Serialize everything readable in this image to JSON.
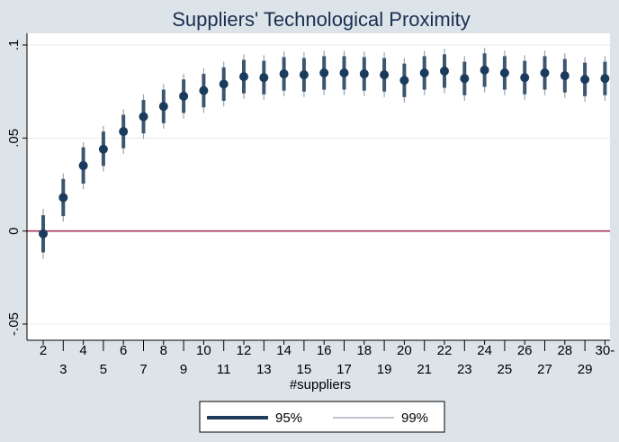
{
  "chart_data": {
    "type": "scatter",
    "title": "Suppliers' Technological Proximity",
    "xlabel": "#suppliers",
    "ylabel": "",
    "ylim": [
      -0.05,
      0.1
    ],
    "yticks": [
      {
        "value": -0.05,
        "label": "-.05"
      },
      {
        "value": 0,
        "label": "0"
      },
      {
        "value": 0.05,
        "label": ".05"
      },
      {
        "value": 0.1,
        "label": ".1"
      }
    ],
    "xticks": [
      "2",
      "3",
      "4",
      "5",
      "6",
      "7",
      "8",
      "9",
      "10",
      "11",
      "12",
      "13",
      "14",
      "15",
      "16",
      "17",
      "18",
      "19",
      "20",
      "21",
      "22",
      "23",
      "24",
      "25",
      "26",
      "27",
      "28",
      "29",
      "30-"
    ],
    "reference_line": {
      "y": 0,
      "color": "#a3234e"
    },
    "grid": true,
    "legend_position": "bottom",
    "legend": [
      {
        "label": "95%",
        "style": "thick",
        "color": "#1f3c5a"
      },
      {
        "label": "99%",
        "style": "thin",
        "color": "#9aa5ae"
      }
    ],
    "points": [
      {
        "x": "2",
        "est": -0.0015,
        "lo95": -0.0115,
        "hi95": 0.0085,
        "lo99": -0.015,
        "hi99": 0.012
      },
      {
        "x": "3",
        "est": 0.018,
        "lo95": 0.008,
        "hi95": 0.028,
        "lo99": 0.005,
        "hi99": 0.031
      },
      {
        "x": "4",
        "est": 0.0352,
        "lo95": 0.0255,
        "hi95": 0.045,
        "lo99": 0.0225,
        "hi99": 0.0478
      },
      {
        "x": "5",
        "est": 0.044,
        "lo95": 0.035,
        "hi95": 0.0535,
        "lo99": 0.032,
        "hi99": 0.0565
      },
      {
        "x": "6",
        "est": 0.0535,
        "lo95": 0.0445,
        "hi95": 0.0625,
        "lo99": 0.0415,
        "hi99": 0.0655
      },
      {
        "x": "7",
        "est": 0.0615,
        "lo95": 0.0525,
        "hi95": 0.0705,
        "lo99": 0.0495,
        "hi99": 0.0735
      },
      {
        "x": "8",
        "est": 0.067,
        "lo95": 0.058,
        "hi95": 0.076,
        "lo99": 0.055,
        "hi99": 0.079
      },
      {
        "x": "9",
        "est": 0.0725,
        "lo95": 0.0635,
        "hi95": 0.0815,
        "lo99": 0.0605,
        "hi99": 0.0845
      },
      {
        "x": "10",
        "est": 0.0755,
        "lo95": 0.0665,
        "hi95": 0.0845,
        "lo99": 0.0635,
        "hi99": 0.0875
      },
      {
        "x": "11",
        "est": 0.079,
        "lo95": 0.07,
        "hi95": 0.088,
        "lo99": 0.067,
        "hi99": 0.091
      },
      {
        "x": "12",
        "est": 0.083,
        "lo95": 0.074,
        "hi95": 0.092,
        "lo99": 0.071,
        "hi99": 0.095
      },
      {
        "x": "13",
        "est": 0.0825,
        "lo95": 0.0735,
        "hi95": 0.0915,
        "lo99": 0.0705,
        "hi99": 0.0945
      },
      {
        "x": "14",
        "est": 0.0845,
        "lo95": 0.0755,
        "hi95": 0.0935,
        "lo99": 0.0725,
        "hi99": 0.0965
      },
      {
        "x": "15",
        "est": 0.084,
        "lo95": 0.075,
        "hi95": 0.093,
        "lo99": 0.072,
        "hi99": 0.096
      },
      {
        "x": "16",
        "est": 0.085,
        "lo95": 0.076,
        "hi95": 0.094,
        "lo99": 0.073,
        "hi99": 0.097
      },
      {
        "x": "17",
        "est": 0.085,
        "lo95": 0.076,
        "hi95": 0.094,
        "lo99": 0.073,
        "hi99": 0.097
      },
      {
        "x": "18",
        "est": 0.0845,
        "lo95": 0.0755,
        "hi95": 0.0935,
        "lo99": 0.0725,
        "hi99": 0.0965
      },
      {
        "x": "19",
        "est": 0.084,
        "lo95": 0.075,
        "hi95": 0.093,
        "lo99": 0.072,
        "hi99": 0.096
      },
      {
        "x": "20",
        "est": 0.081,
        "lo95": 0.072,
        "hi95": 0.09,
        "lo99": 0.069,
        "hi99": 0.093
      },
      {
        "x": "21",
        "est": 0.085,
        "lo95": 0.076,
        "hi95": 0.094,
        "lo99": 0.073,
        "hi99": 0.097
      },
      {
        "x": "22",
        "est": 0.086,
        "lo95": 0.077,
        "hi95": 0.095,
        "lo99": 0.074,
        "hi99": 0.098
      },
      {
        "x": "23",
        "est": 0.082,
        "lo95": 0.073,
        "hi95": 0.091,
        "lo99": 0.07,
        "hi99": 0.094
      },
      {
        "x": "24",
        "est": 0.0865,
        "lo95": 0.0775,
        "hi95": 0.0955,
        "lo99": 0.0745,
        "hi99": 0.0985
      },
      {
        "x": "25",
        "est": 0.085,
        "lo95": 0.076,
        "hi95": 0.094,
        "lo99": 0.073,
        "hi99": 0.097
      },
      {
        "x": "26",
        "est": 0.0825,
        "lo95": 0.0735,
        "hi95": 0.0915,
        "lo99": 0.0705,
        "hi99": 0.0945
      },
      {
        "x": "27",
        "est": 0.085,
        "lo95": 0.076,
        "hi95": 0.094,
        "lo99": 0.073,
        "hi99": 0.097
      },
      {
        "x": "28",
        "est": 0.0835,
        "lo95": 0.0745,
        "hi95": 0.0925,
        "lo99": 0.0715,
        "hi99": 0.0955
      },
      {
        "x": "29",
        "est": 0.0815,
        "lo95": 0.0725,
        "hi95": 0.0905,
        "lo99": 0.0695,
        "hi99": 0.0935
      },
      {
        "x": "30-",
        "est": 0.082,
        "lo95": 0.073,
        "hi95": 0.091,
        "lo99": 0.07,
        "hi99": 0.094
      }
    ]
  }
}
